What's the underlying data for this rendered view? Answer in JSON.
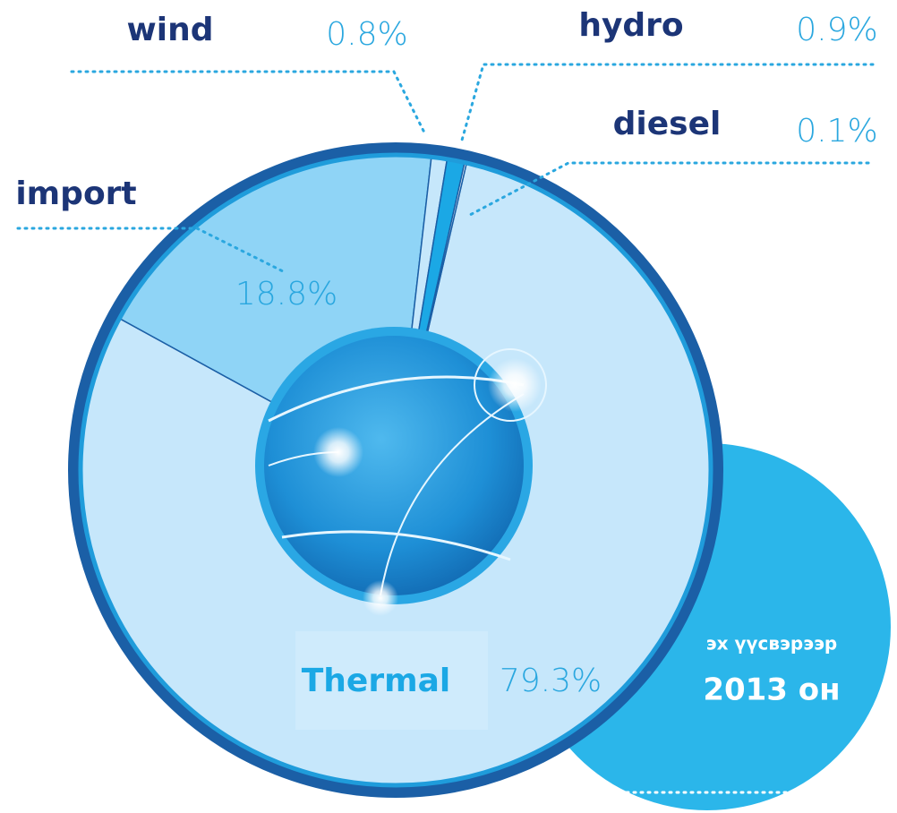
{
  "chart_data": {
    "type": "pie",
    "categories": [
      "Thermal",
      "import",
      "wind",
      "hydro",
      "diesel"
    ],
    "values": [
      79.3,
      18.8,
      0.8,
      0.9,
      0.1
    ],
    "value_labels": [
      "79.3%",
      "18.8%",
      "0.8%",
      "0.9%",
      "0.1%"
    ],
    "colors": [
      "#c6e7fb",
      "#8fd4f6",
      "#c6e7fb",
      "#1ba8e5",
      "#ffffff"
    ],
    "caption": "эх үүсвэрээр",
    "year_label": "2013 он"
  }
}
